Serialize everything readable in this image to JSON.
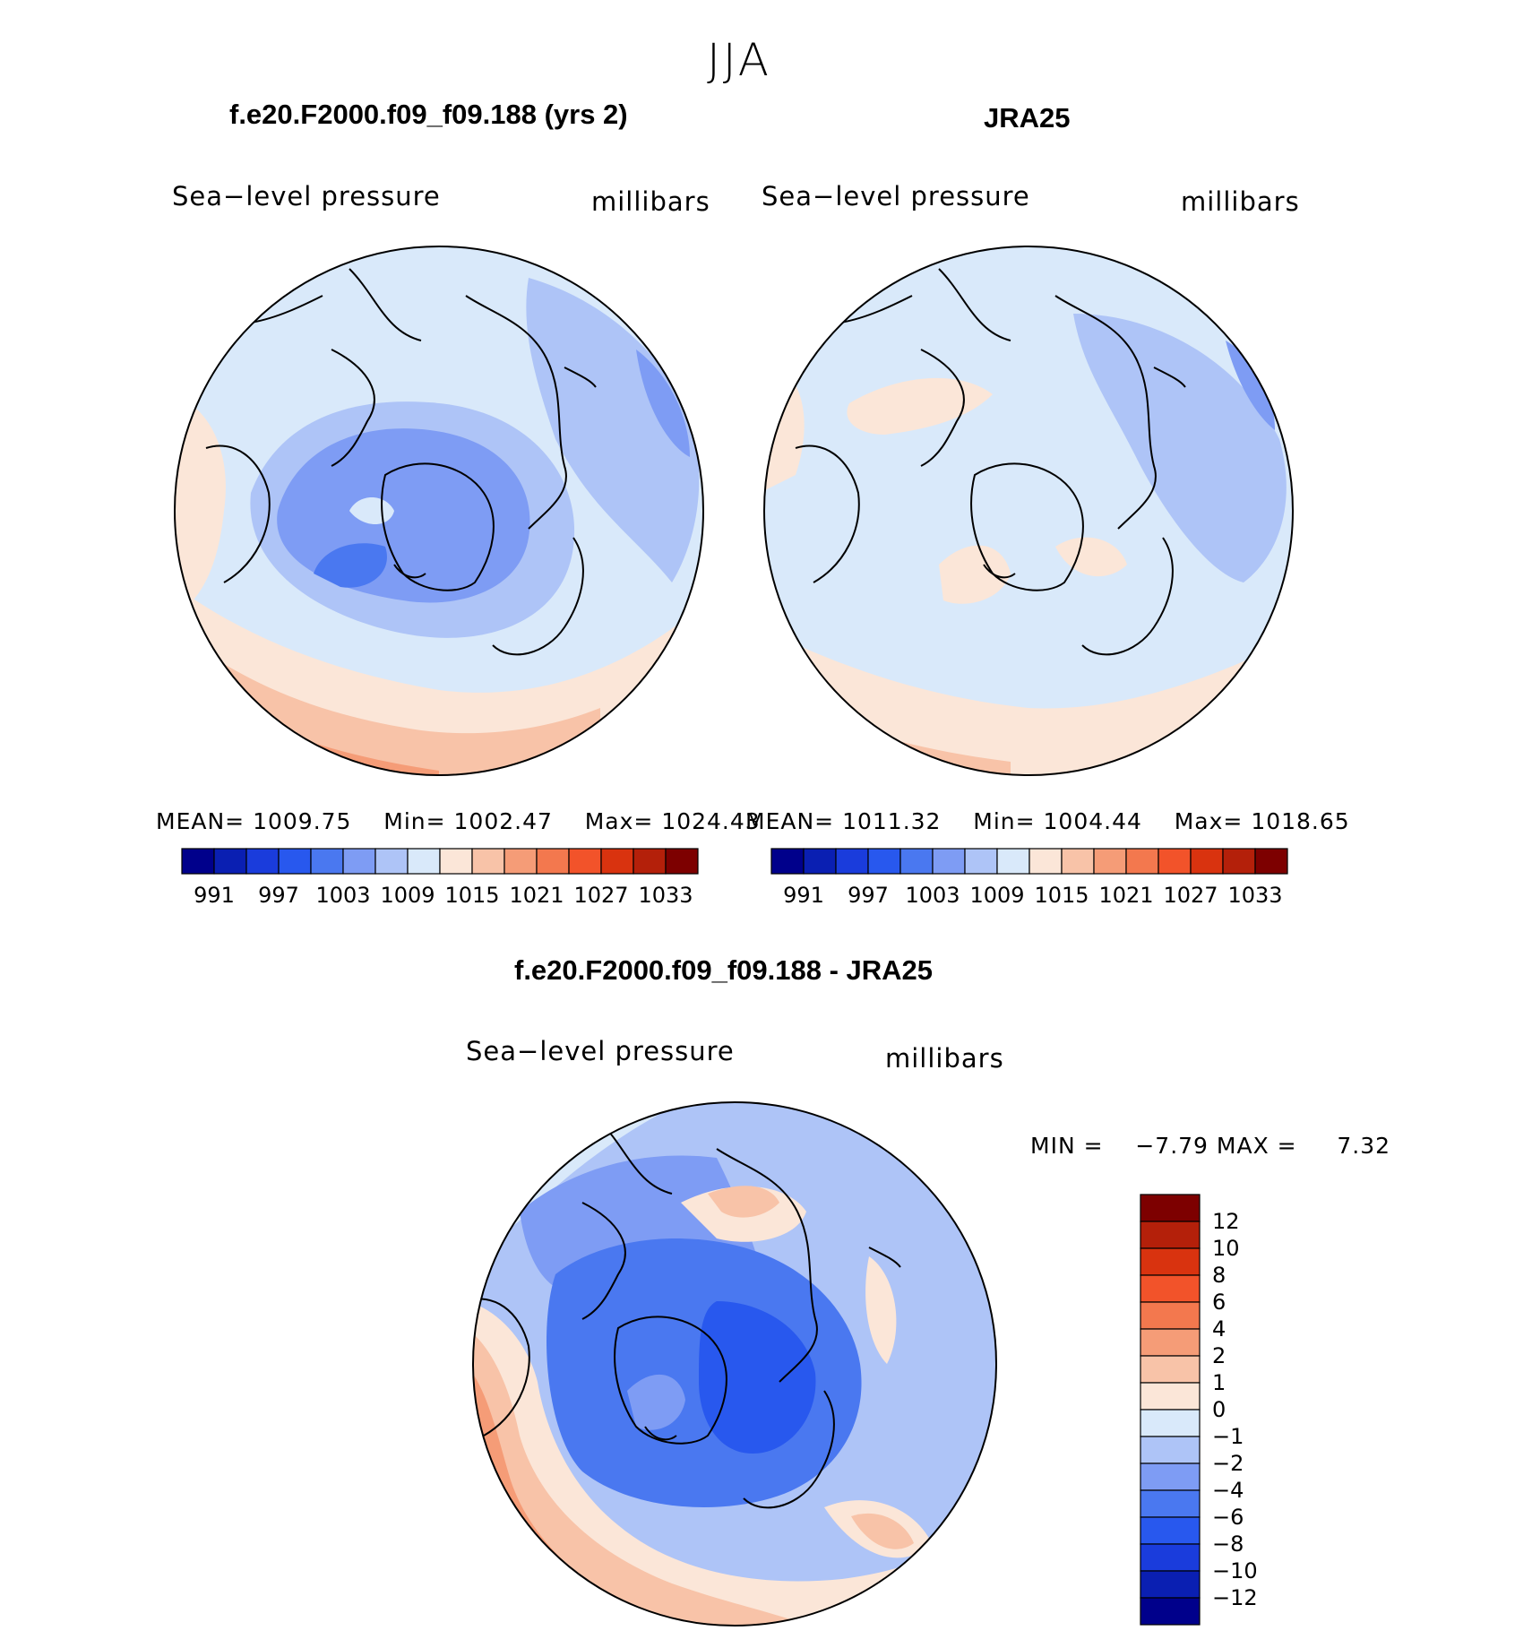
{
  "season_title": "JJA",
  "panels": [
    {
      "title": "f.e20.F2000.f09_f09.188 (yrs 2)",
      "variable": "Sea−level pressure",
      "units": "millibars",
      "stats": {
        "mean_label": "MEAN=",
        "mean": "1009.75",
        "min_label": "Min=",
        "min": "1002.47",
        "max_label": "Max=",
        "max": "1024.43"
      }
    },
    {
      "title": "JRA25",
      "variable": "Sea−level pressure",
      "units": "millibars",
      "stats": {
        "mean_label": "MEAN=",
        "mean": "1011.32",
        "min_label": "Min=",
        "min": "1004.44",
        "max_label": "Max=",
        "max": "1018.65"
      }
    }
  ],
  "difference": {
    "title": "f.e20.F2000.f09_f09.188 - JRA25",
    "variable": "Sea−level pressure",
    "units": "millibars",
    "min_label": "MIN =",
    "min": "−7.79",
    "max_label": "MAX =",
    "max": "7.32"
  },
  "colorbar_abs": {
    "colors": [
      "#00008b",
      "#0a1fb2",
      "#1a3cdc",
      "#2858ee",
      "#4a78f0",
      "#7e9cf4",
      "#aec4f7",
      "#d9e9fa",
      "#fbe6d8",
      "#f8c3a8",
      "#f59c77",
      "#f3784e",
      "#f2532a",
      "#d9330f",
      "#b4200a",
      "#7d0000"
    ],
    "labels": [
      "991",
      "997",
      "1003",
      "1009",
      "1015",
      "1021",
      "1027",
      "1033"
    ]
  },
  "colorbar_diff": {
    "colors": [
      "#00008b",
      "#0a1fb2",
      "#1a3cdc",
      "#2858ee",
      "#4a78f0",
      "#7e9cf4",
      "#aec4f7",
      "#d9e9fa",
      "#fbe6d8",
      "#f8c3a8",
      "#f59c77",
      "#f3784e",
      "#f2532a",
      "#d9330f",
      "#b4200a",
      "#7d0000"
    ],
    "labels": [
      "−12",
      "−10",
      "−8",
      "−6",
      "−4",
      "−2",
      "−1",
      "0",
      "1",
      "2",
      "4",
      "6",
      "8",
      "10",
      "12"
    ]
  },
  "colors": {
    "background": "#ffffff",
    "coast": "#000000"
  }
}
